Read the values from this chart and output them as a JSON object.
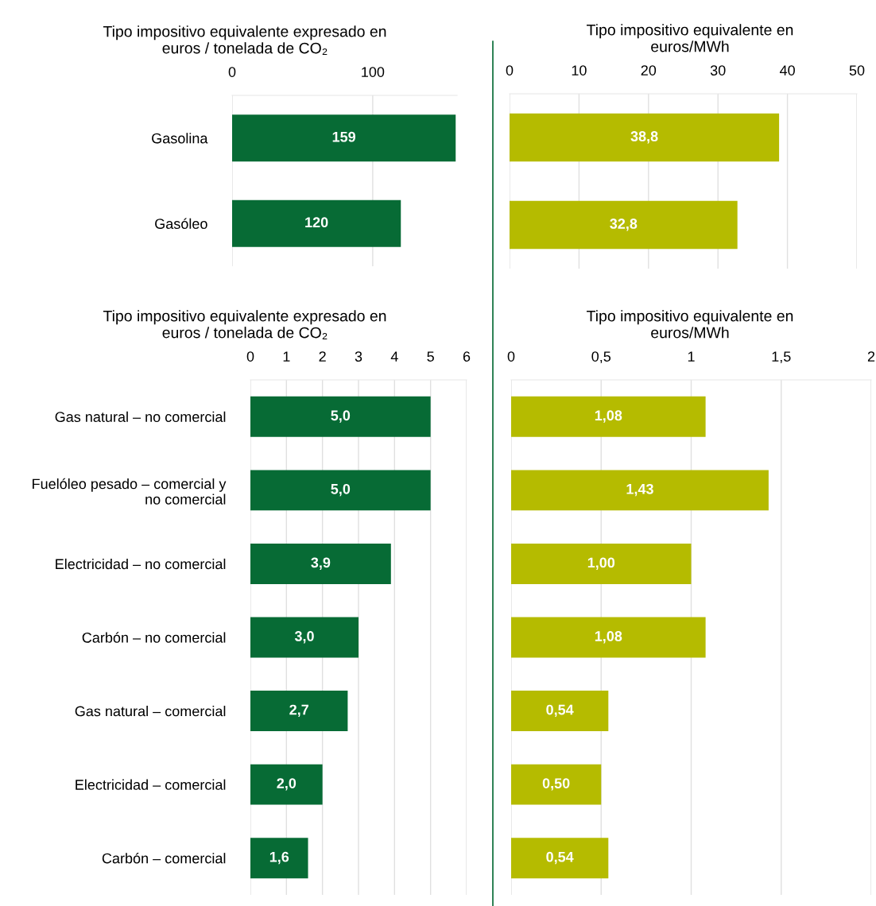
{
  "chart_data": [
    {
      "type": "bar",
      "orientation": "horizontal",
      "title": "Tipo impositivo equivalente expresado en\neuros / tonelada de CO₂",
      "categories": [
        "Gasolina",
        "Gasóleo"
      ],
      "values": [
        159,
        120
      ],
      "color": "#076b35",
      "value_labels": [
        "159",
        "120"
      ],
      "xlim": [
        0,
        160
      ],
      "xticks": [
        0,
        100
      ],
      "grid": "x"
    },
    {
      "type": "bar",
      "orientation": "horizontal",
      "title": "Tipo impositivo equivalente en\neuros/MWh",
      "categories": [
        null,
        null
      ],
      "values": [
        38.8,
        32.8
      ],
      "color": "#b5bb00",
      "value_labels": [
        "38,8",
        "32,8"
      ],
      "xlim": [
        0,
        50
      ],
      "xticks": [
        0,
        10,
        20,
        30,
        40,
        50
      ],
      "grid": "x"
    },
    {
      "type": "bar",
      "orientation": "horizontal",
      "title": "Tipo impositivo equivalente expresado en\neuros / tonelada de CO₂",
      "categories": [
        "Gas natural – no comercial",
        "Fuelóleo pesado – comercial y\nno comercial",
        "Electricidad – no comercial",
        "Carbón – no comercial",
        "Gas natural – comercial",
        "Electricidad – comercial",
        "Carbón – comercial"
      ],
      "values": [
        5.0,
        5.0,
        3.9,
        3.0,
        2.7,
        2.0,
        1.6
      ],
      "color": "#076b35",
      "value_labels": [
        "5,0",
        "5,0",
        "3,9",
        "3,0",
        "2,7",
        "2,0",
        "1,6"
      ],
      "xlim": [
        0,
        6
      ],
      "xticks": [
        0,
        1,
        2,
        3,
        4,
        5,
        6
      ],
      "grid": "x"
    },
    {
      "type": "bar",
      "orientation": "horizontal",
      "title": "Tipo impositivo equivalente en\neuros/MWh",
      "categories": [
        null,
        null,
        null,
        null,
        null,
        null,
        null
      ],
      "values": [
        1.08,
        1.43,
        1.0,
        1.08,
        0.54,
        0.5,
        0.54
      ],
      "color": "#b5bb00",
      "value_labels": [
        "1,08",
        "1,43",
        "1,00",
        "1,08",
        "0,54",
        "0,50",
        "0,54"
      ],
      "xlim": [
        0,
        2
      ],
      "xticks": [
        0,
        {
          "value": 0.5,
          "label": "0,5"
        },
        1,
        {
          "value": 1.5,
          "label": "1,5"
        },
        2
      ],
      "grid": "x"
    }
  ]
}
